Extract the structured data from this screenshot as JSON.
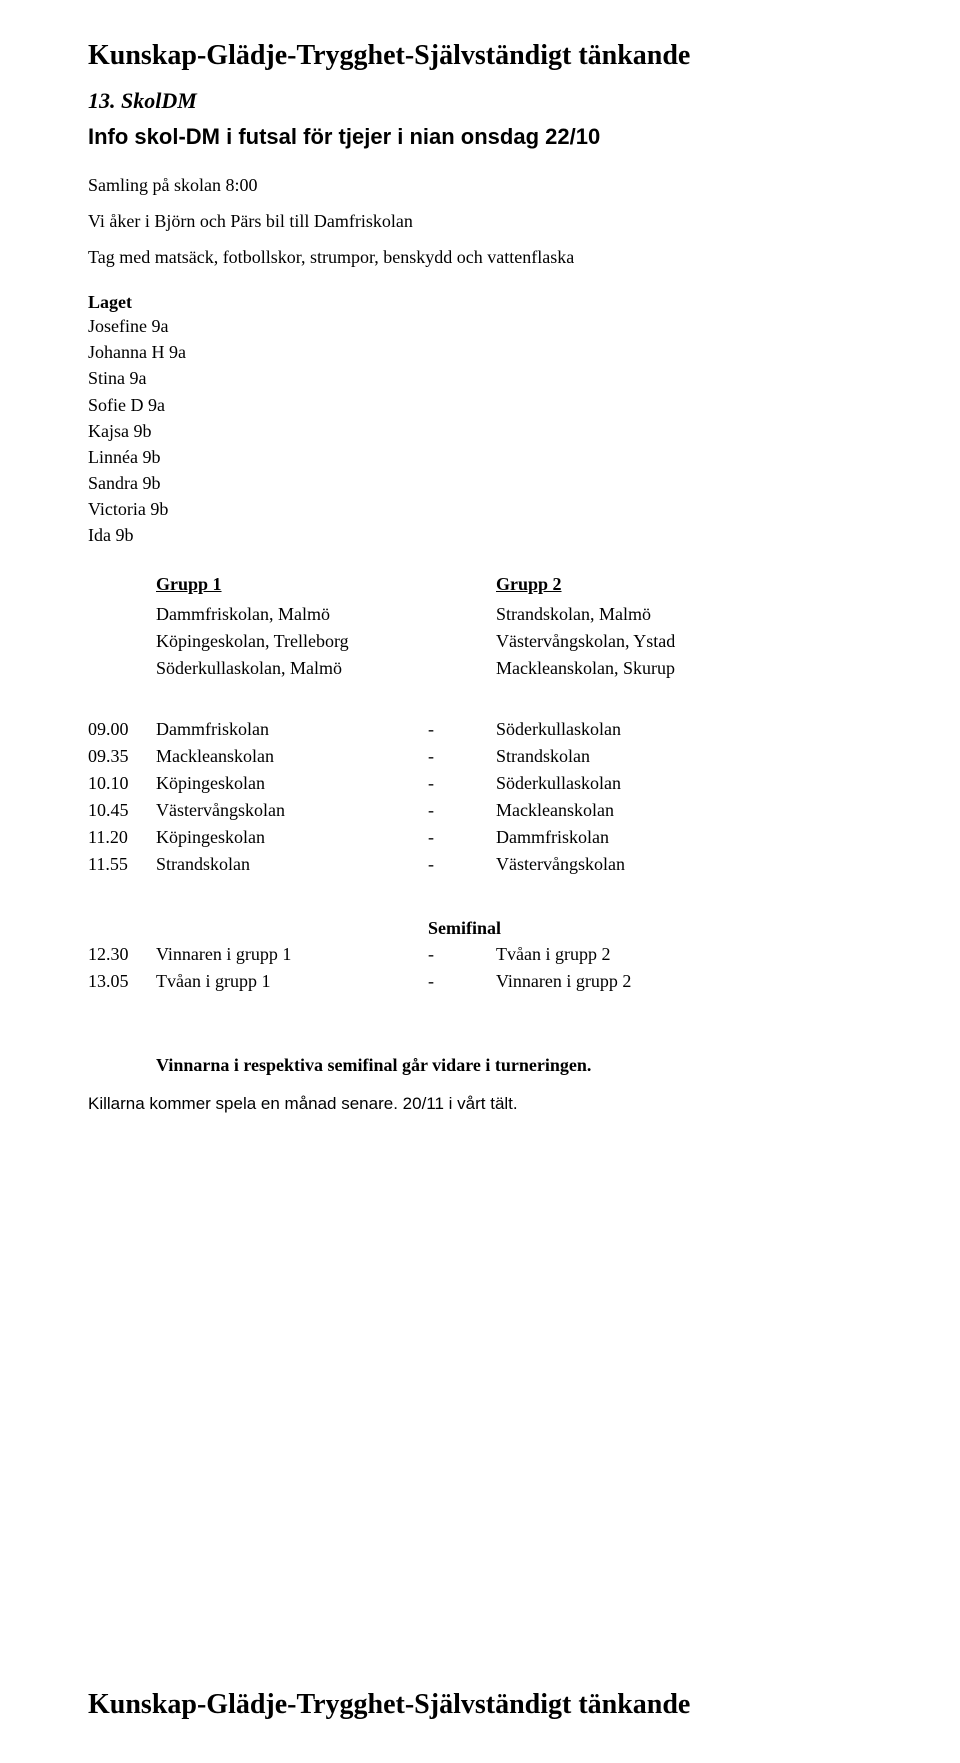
{
  "header_line": "Kunskap-Glädje-Trygghet-Självständigt tänkande",
  "section_number": "13. SkolDM",
  "subtitle": "Info skol-DM i futsal för tjejer i nian onsdag 22/10",
  "intro_line1": "Samling på skolan 8:00",
  "intro_line2": "Vi åker i Björn och Pärs bil till Damfriskolan",
  "intro_line3": "Tag med matsäck, fotbollskor, strumpor, benskydd och vattenflaska",
  "laget_label": "Laget",
  "players": [
    "Josefine 9a",
    "Johanna H 9a",
    "Stina 9a",
    "Sofie D 9a",
    "Kajsa 9b",
    "Linnéa 9b",
    "Sandra 9b",
    "Victoria 9b",
    "Ida 9b"
  ],
  "group1_head": "Grupp 1",
  "group2_head": "Grupp 2",
  "group1": [
    "Dammfriskolan, Malmö",
    "Köpingeskolan, Trelleborg",
    "Söderkullaskolan, Malmö"
  ],
  "group2": [
    "Strandskolan, Malmö",
    "Västervångskolan, Ystad",
    "Mackleanskolan, Skurup"
  ],
  "schedule": [
    {
      "time": "09.00",
      "left": "Dammfriskolan",
      "dash": "-",
      "right": "Söderkullaskolan"
    },
    {
      "time": "09.35",
      "left": "Mackleanskolan",
      "dash": "-",
      "right": "Strandskolan"
    },
    {
      "time": "10.10",
      "left": "Köpingeskolan",
      "dash": "-",
      "right": "Söderkullaskolan"
    },
    {
      "time": "10.45",
      "left": "Västervångskolan",
      "dash": "-",
      "right": "Mackleanskolan"
    },
    {
      "time": "11.20",
      "left": "Köpingeskolan",
      "dash": "-",
      "right": "Dammfriskolan"
    },
    {
      "time": "11.55",
      "left": "Strandskolan",
      "dash": "-",
      "right": "Västervångskolan"
    }
  ],
  "semifinal_label": "Semifinal",
  "semifinal": [
    {
      "time": "12.30",
      "left": "Vinnaren i grupp 1",
      "dash": "-",
      "right": "Tvåan i grupp 2"
    },
    {
      "time": "13.05",
      "left": "Tvåan i grupp 1",
      "dash": "-",
      "right": "Vinnaren i grupp 2"
    }
  ],
  "advance_text": "Vinnarna i respektiva semifinal går vidare i turneringen.",
  "note_text": "Killarna kommer spela en månad senare. 20/11 i vårt tält.",
  "footer_line": "Kunskap-Glädje-Trygghet-Självständigt tänkande"
}
